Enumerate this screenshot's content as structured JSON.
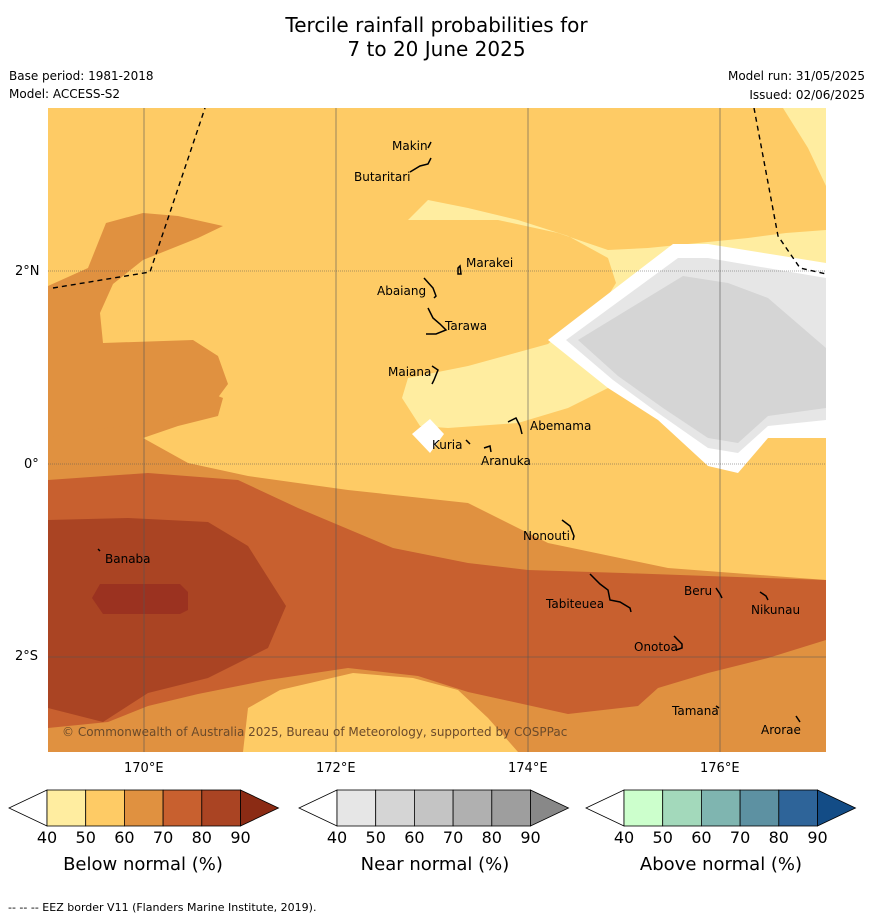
{
  "title_line1": "Tercile rainfall probabilities for",
  "title_line2": "7 to 20 June 2025",
  "base_period": "Base period: 1981-2018",
  "model": "Model: ACCESS-S2",
  "model_run": "Model run: 31/05/2025",
  "issued": "Issued: 02/06/2025",
  "copyright": "© Commonwealth of Australia 2025, Bureau of Meteorology, supported by COSPPac",
  "lat_labels": [
    "2°N",
    "0°",
    "2°S"
  ],
  "lon_labels": [
    "170°E",
    "172°E",
    "174°E",
    "176°E"
  ],
  "islands": [
    "Makin",
    "Butaritari",
    "Marakei",
    "Abaiang",
    "Tarawa",
    "Maiana",
    "Abemama",
    "Kuria",
    "Aranuka",
    "Nonouti",
    "Banaba",
    "Tabiteuea",
    "Beru",
    "Nikunau",
    "Onotoa",
    "Tamana",
    "Arorae"
  ],
  "colorbars": {
    "below": {
      "label": "Below normal (%)",
      "ticks": [
        "40",
        "50",
        "60",
        "70",
        "80",
        "90"
      ],
      "colors": [
        "#ffffff",
        "#ffeda0",
        "#fecb65",
        "#e09140",
        "#c8602f",
        "#aa4423",
        "#8b2b14"
      ]
    },
    "near": {
      "label": "Near normal (%)",
      "ticks": [
        "40",
        "50",
        "60",
        "70",
        "80",
        "90"
      ],
      "colors": [
        "#ffffff",
        "#e6e6e6",
        "#d5d5d5",
        "#c4c4c4",
        "#b0b0b0",
        "#9e9e9e",
        "#888888"
      ]
    },
    "above": {
      "label": "Above normal (%)",
      "ticks": [
        "40",
        "50",
        "60",
        "70",
        "80",
        "90"
      ],
      "colors": [
        "#ffffff",
        "#ccffcc",
        "#a3d9bb",
        "#7fb5b0",
        "#5d91a2",
        "#2e6499",
        "#134c86"
      ]
    }
  },
  "footnote": "--  --  -- EEZ border V11 (Flanders Marine Institute, 2019)."
}
